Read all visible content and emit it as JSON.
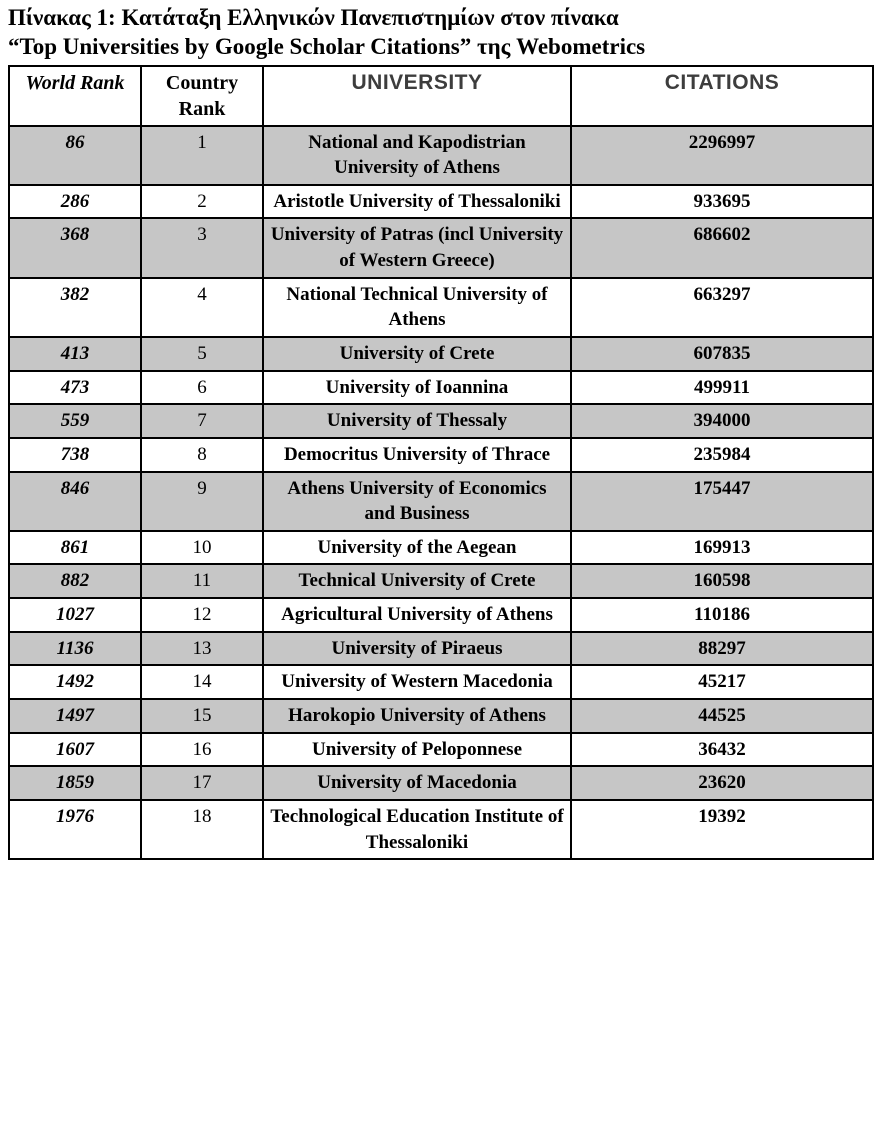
{
  "title_line1": "Πίνακας 1: Κατάταξη Ελληνικών Πανεπιστημίων στον πίνακα",
  "title_line2": "“Top Universities by Google Scholar Citations” της Webometrics",
  "colors": {
    "shaded_row": "#c6c6c6",
    "header_sans_text": "#3d3d3d"
  },
  "table": {
    "headers": {
      "world_rank": "World Rank",
      "country_rank": "Country Rank",
      "university": "UNIVERSITY",
      "citations": "CITATIONS"
    },
    "rows": [
      {
        "world_rank": "86",
        "country_rank": "1",
        "university": "National and Kapodistrian University of Athens",
        "citations": "2296997"
      },
      {
        "world_rank": "286",
        "country_rank": "2",
        "university": "Aristotle University of Thessaloniki",
        "citations": "933695"
      },
      {
        "world_rank": "368",
        "country_rank": "3",
        "university": "University of Patras (incl University of Western Greece)",
        "citations": "686602"
      },
      {
        "world_rank": "382",
        "country_rank": "4",
        "university": "National Technical University of Athens",
        "citations": "663297"
      },
      {
        "world_rank": "413",
        "country_rank": "5",
        "university": "University of Crete",
        "citations": "607835"
      },
      {
        "world_rank": "473",
        "country_rank": "6",
        "university": "University of Ioannina",
        "citations": "499911"
      },
      {
        "world_rank": "559",
        "country_rank": "7",
        "university": "University of Thessaly",
        "citations": "394000"
      },
      {
        "world_rank": "738",
        "country_rank": "8",
        "university": "Democritus University of Thrace",
        "citations": "235984"
      },
      {
        "world_rank": "846",
        "country_rank": "9",
        "university": "Athens University of Economics and Business",
        "citations": "175447"
      },
      {
        "world_rank": "861",
        "country_rank": "10",
        "university": "University of the Aegean",
        "citations": "169913"
      },
      {
        "world_rank": "882",
        "country_rank": "11",
        "university": "Technical University of Crete",
        "citations": "160598"
      },
      {
        "world_rank": "1027",
        "country_rank": "12",
        "university": "Agricultural University of Athens",
        "citations": "110186"
      },
      {
        "world_rank": "1136",
        "country_rank": "13",
        "university": "University of Piraeus",
        "citations": "88297"
      },
      {
        "world_rank": "1492",
        "country_rank": "14",
        "university": "University of Western Macedonia",
        "citations": "45217"
      },
      {
        "world_rank": "1497",
        "country_rank": "15",
        "university": "Harokopio University of Athens",
        "citations": "44525"
      },
      {
        "world_rank": "1607",
        "country_rank": "16",
        "university": "University of Peloponnese",
        "citations": "36432"
      },
      {
        "world_rank": "1859",
        "country_rank": "17",
        "university": "University of Macedonia",
        "citations": "23620"
      },
      {
        "world_rank": "1976",
        "country_rank": "18",
        "university": "Technological Education Institute of Thessaloniki",
        "citations": "19392"
      }
    ]
  }
}
